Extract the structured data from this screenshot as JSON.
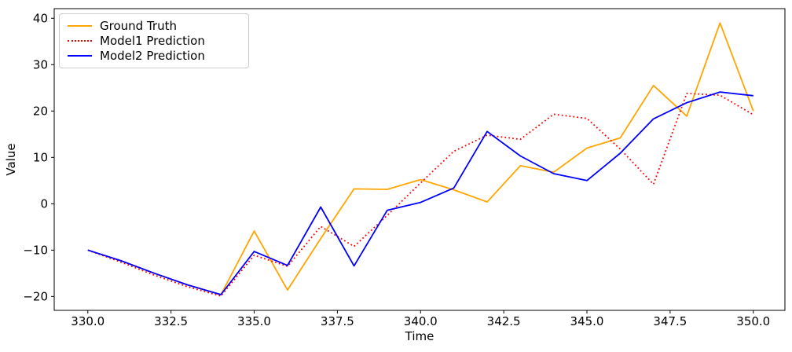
{
  "chart_data": {
    "type": "line",
    "title": "",
    "xlabel": "Time",
    "ylabel": "Value",
    "grid": false,
    "legend_position": "upper-left",
    "xlim": [
      328.99,
      350.95
    ],
    "ylim": [
      -22.99,
      42.08
    ],
    "x": [
      330,
      331,
      332,
      333,
      334,
      335,
      336,
      337,
      338,
      339,
      340,
      341,
      342,
      343,
      344,
      345,
      346,
      347,
      348,
      349,
      350
    ],
    "series": [
      {
        "name": "Ground Truth",
        "color": "#ffa500",
        "style": "solid",
        "values": [
          -10.0,
          -12.3,
          -15.0,
          -17.5,
          -19.6,
          -5.9,
          -18.6,
          -7.5,
          3.2,
          3.1,
          5.2,
          3.0,
          0.4,
          8.2,
          6.8,
          12.0,
          14.2,
          25.5,
          18.9,
          39.0,
          20.0
        ]
      },
      {
        "name": "Model1 Prediction",
        "color": "#ff0000",
        "style": "dotted",
        "values": [
          -10.0,
          -12.6,
          -15.4,
          -17.9,
          -19.9,
          -11.1,
          -13.5,
          -4.9,
          -9.2,
          -2.5,
          4.5,
          11.3,
          14.8,
          13.9,
          19.3,
          18.4,
          11.8,
          4.2,
          23.8,
          23.4,
          19.2
        ]
      },
      {
        "name": "Model2 Prediction",
        "color": "#0000ff",
        "style": "solid",
        "values": [
          -10.0,
          -12.3,
          -15.0,
          -17.5,
          -19.6,
          -10.3,
          -13.3,
          -0.7,
          -13.4,
          -1.4,
          0.3,
          3.4,
          15.6,
          10.3,
          6.5,
          5.0,
          10.9,
          18.3,
          21.8,
          24.1,
          23.3
        ]
      }
    ],
    "xticks": {
      "values": [
        330,
        332.5,
        335,
        337.5,
        340,
        342.5,
        345,
        347.5,
        350
      ],
      "labels": [
        "330.0",
        "332.5",
        "335.0",
        "337.5",
        "340.0",
        "342.5",
        "345.0",
        "347.5",
        "350.0"
      ]
    },
    "yticks": {
      "values": [
        -20,
        -10,
        0,
        10,
        20,
        30,
        40
      ],
      "labels": [
        "−20",
        "−10",
        "0",
        "10",
        "20",
        "30",
        "40"
      ]
    }
  }
}
